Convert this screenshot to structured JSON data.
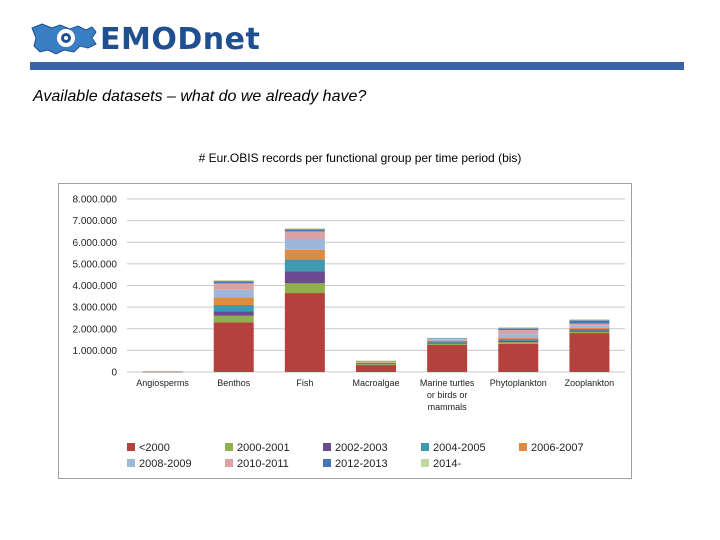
{
  "header": {
    "logo_text": "EMODnet",
    "heading": "Available datasets – what do we already have?"
  },
  "colors": {
    "topbar": "#3a63a8",
    "logo_text": "#1f4f8f"
  },
  "chart_data": {
    "type": "bar",
    "stacked": true,
    "title": "# Eur.OBIS records per functional group per time period (bis)",
    "xlabel": "",
    "ylabel": "",
    "ylim": [
      0,
      8000000
    ],
    "yticks": [
      0,
      1000000,
      2000000,
      3000000,
      4000000,
      5000000,
      6000000,
      7000000,
      8000000
    ],
    "ytick_labels": [
      "0",
      "1.000.000",
      "2.000.000",
      "3.000.000",
      "4.000.000",
      "5.000.000",
      "6.000.000",
      "7.000.000",
      "8.000.000"
    ],
    "grid": true,
    "legend_position": "bottom",
    "categories": [
      [
        "Angiosperms"
      ],
      [
        "Benthos"
      ],
      [
        "Fish"
      ],
      [
        "Macroalgae"
      ],
      [
        "Marine turtles",
        "or birds or",
        "mammals"
      ],
      [
        "Phytoplankton"
      ],
      [
        "Zooplankton"
      ]
    ],
    "series": [
      {
        "name": "<2000",
        "color": "#b5413e",
        "values": [
          10000,
          2300000,
          3650000,
          320000,
          1250000,
          1300000,
          1800000
        ]
      },
      {
        "name": "2000-2001",
        "color": "#8fb04a",
        "values": [
          5000,
          300000,
          450000,
          40000,
          60000,
          80000,
          60000
        ]
      },
      {
        "name": "2002-2003",
        "color": "#6b4a8f",
        "values": [
          5000,
          200000,
          550000,
          30000,
          50000,
          70000,
          60000
        ]
      },
      {
        "name": "2004-2005",
        "color": "#3f9ab0",
        "values": [
          5000,
          300000,
          550000,
          30000,
          50000,
          80000,
          70000
        ]
      },
      {
        "name": "2006-2007",
        "color": "#e08a3e",
        "values": [
          5000,
          350000,
          450000,
          30000,
          40000,
          60000,
          50000
        ]
      },
      {
        "name": "2008-2009",
        "color": "#9db6dc",
        "values": [
          5000,
          350000,
          500000,
          30000,
          40000,
          150000,
          100000
        ]
      },
      {
        "name": "2010-2011",
        "color": "#dca2a3",
        "values": [
          5000,
          300000,
          350000,
          30000,
          40000,
          200000,
          100000
        ]
      },
      {
        "name": "2012-2013",
        "color": "#4a74b8",
        "values": [
          5000,
          100000,
          100000,
          10000,
          30000,
          80000,
          150000
        ]
      },
      {
        "name": "2014-",
        "color": "#c2d7a0",
        "values": [
          3000,
          50000,
          50000,
          10000,
          20000,
          50000,
          50000
        ]
      }
    ]
  }
}
